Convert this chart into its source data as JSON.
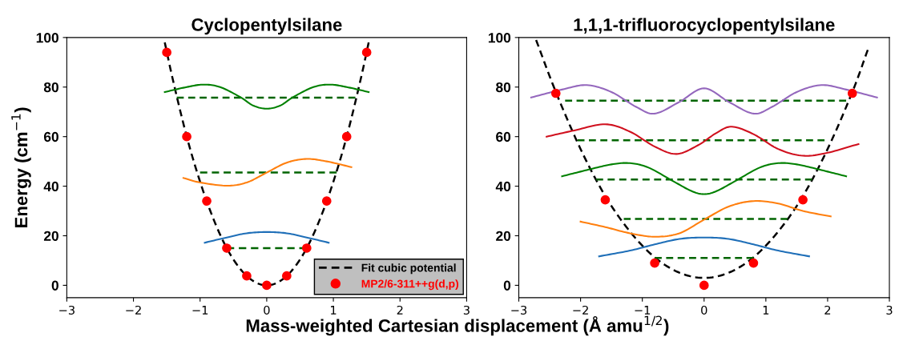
{
  "chart_data": [
    {
      "type": "line",
      "title": "Cyclopentylsilane",
      "xlabel": "Mass-weighted Cartesian displacement (Å amu$^{1/2}$)",
      "ylabel": "Energy (cm$^{−1}$)",
      "xlim": [
        -3,
        3
      ],
      "ylim": [
        -5,
        100
      ],
      "xticks": [
        {
          "value": -3,
          "label": "−3"
        },
        {
          "value": -2,
          "label": "−2"
        },
        {
          "value": -1,
          "label": "−1"
        },
        0,
        1,
        2,
        3
      ],
      "yticks": [
        0,
        20,
        40,
        60,
        80,
        100
      ],
      "grid": false,
      "legend": "bottom right",
      "series": [
        {
          "name": "Fit cubic potential",
          "color": "#000000",
          "line_style": "dashed",
          "x": [
            -1.53,
            -1.4,
            -1.2,
            -1.0,
            -0.8,
            -0.6,
            -0.4,
            -0.2,
            0,
            0.2,
            0.4,
            0.6,
            0.8,
            1.0,
            1.2,
            1.4,
            1.53
          ],
          "values": [
            98,
            82,
            60,
            41.8,
            26.8,
            15,
            6.7,
            1.7,
            0,
            1.7,
            6.7,
            15,
            26.8,
            41.8,
            60,
            82,
            98
          ]
        },
        {
          "type": "scatter",
          "name": "MP2/6-311++g(d,p)",
          "color": "#ff0000",
          "marker": "circle",
          "x": [
            -1.5,
            -1.2,
            -0.9,
            -0.6,
            -0.3,
            0,
            0.3,
            0.6,
            0.9,
            1.2,
            1.5
          ],
          "values": [
            94,
            60,
            34,
            15,
            3.8,
            0,
            3.8,
            15,
            34,
            60,
            94
          ]
        },
        {
          "type": "line",
          "color": "#006400",
          "line_style": "dashed",
          "x": [
            -0.6,
            0.6
          ],
          "values": [
            15,
            15
          ]
        },
        {
          "type": "line",
          "color": "#006400",
          "line_style": "dashed",
          "x": [
            -1.0,
            1.05
          ],
          "values": [
            45.5,
            45.5
          ]
        },
        {
          "type": "line",
          "color": "#006400",
          "line_style": "dashed",
          "x": [
            -1.35,
            1.33
          ],
          "values": [
            75.7,
            75.7
          ]
        },
        {
          "type": "line",
          "color": "#1f6fb8",
          "line_style": "solid",
          "x": [
            -0.93,
            -0.6,
            -0.3,
            0,
            0.3,
            0.6,
            0.93
          ],
          "values": [
            17.2,
            19.3,
            21,
            21.5,
            21,
            19.3,
            17.2
          ]
        },
        {
          "type": "line",
          "color": "#ff7f0e",
          "line_style": "solid",
          "x": [
            -1.25,
            -1.0,
            -0.6,
            -0.3,
            0,
            0.3,
            0.6,
            0.9,
            1.27
          ],
          "values": [
            43.3,
            41.5,
            40.2,
            41.5,
            45.5,
            49.5,
            51,
            50,
            47.7
          ]
        },
        {
          "type": "line",
          "color": "#008000",
          "line_style": "solid",
          "x": [
            -1.53,
            -1.2,
            -0.95,
            -0.7,
            -0.4,
            -0.2,
            0,
            0.2,
            0.4,
            0.7,
            0.95,
            1.2,
            1.53
          ],
          "values": [
            78,
            80,
            81,
            80,
            76,
            72.5,
            71.3,
            72.5,
            76,
            80,
            81,
            80,
            78
          ]
        }
      ]
    },
    {
      "type": "line",
      "title": "1,1,1-trifluorocyclopentylsilane",
      "xlim": [
        -3,
        3
      ],
      "ylim": [
        -5,
        100
      ],
      "xticks": [
        {
          "value": -3,
          "label": "−3"
        },
        {
          "value": -2,
          "label": "−2"
        },
        {
          "value": -1,
          "label": "−1"
        },
        0,
        1,
        2,
        3
      ],
      "yticks": [
        0,
        20,
        40,
        60,
        80,
        100
      ],
      "grid": false,
      "series": [
        {
          "type": "line",
          "color": "#000000",
          "line_style": "dashed",
          "x": [
            -2.72,
            -2.4,
            -2.0,
            -1.6,
            -1.2,
            -0.8,
            -0.4,
            0,
            0.4,
            0.8,
            1.2,
            1.6,
            2.0,
            2.4,
            2.65
          ],
          "values": [
            99,
            78,
            55,
            36,
            21.7,
            11.3,
            5.1,
            3,
            5.1,
            11.3,
            21.7,
            36,
            55,
            78,
            95
          ]
        },
        {
          "type": "scatter",
          "color": "#ff0000",
          "marker": "circle",
          "x": [
            -2.4,
            -1.6,
            -0.8,
            0,
            0.8,
            1.6,
            2.4
          ],
          "values": [
            77.5,
            34.5,
            9,
            0,
            9,
            34.5,
            77.5
          ]
        },
        {
          "type": "line",
          "color": "#006400",
          "line_style": "dashed",
          "x": [
            -0.8,
            0.8
          ],
          "values": [
            11,
            11
          ]
        },
        {
          "type": "line",
          "color": "#006400",
          "line_style": "dashed",
          "x": [
            -1.3,
            1.35
          ],
          "values": [
            26.8,
            26.8
          ]
        },
        {
          "type": "line",
          "color": "#006400",
          "line_style": "dashed",
          "x": [
            -1.75,
            1.75
          ],
          "values": [
            42.7,
            42.7
          ]
        },
        {
          "type": "line",
          "color": "#006400",
          "line_style": "dashed",
          "x": [
            -2.05,
            1.95
          ],
          "values": [
            58.5,
            58.5
          ]
        },
        {
          "type": "line",
          "color": "#006400",
          "line_style": "dashed",
          "x": [
            -2.25,
            2.3
          ],
          "values": [
            74.5,
            74.5
          ]
        },
        {
          "type": "line",
          "color": "#1f6fb8",
          "line_style": "solid",
          "x": [
            -1.7,
            -1.2,
            -0.8,
            -0.4,
            0,
            0.4,
            0.8,
            1.2,
            1.7
          ],
          "values": [
            11.7,
            14,
            16.5,
            18.7,
            19.3,
            18.7,
            16.5,
            14,
            11.7
          ]
        },
        {
          "type": "line",
          "color": "#ff7f0e",
          "line_style": "solid",
          "x": [
            -2.0,
            -1.6,
            -1.2,
            -0.8,
            -0.4,
            0,
            0.4,
            0.8,
            1.2,
            1.6,
            2.05
          ],
          "values": [
            25.7,
            23.5,
            21,
            19.6,
            21,
            26.5,
            31.8,
            34,
            33,
            30,
            27.8
          ]
        },
        {
          "type": "line",
          "color": "#008000",
          "line_style": "solid",
          "x": [
            -2.3,
            -1.9,
            -1.5,
            -1.2,
            -0.9,
            -0.5,
            -0.2,
            0,
            0.2,
            0.5,
            0.9,
            1.2,
            1.5,
            1.9,
            2.3
          ],
          "values": [
            44,
            46.5,
            48.8,
            49.3,
            47.5,
            42,
            38,
            36.8,
            38,
            42,
            47.5,
            49.3,
            48.8,
            46.5,
            44
          ]
        },
        {
          "type": "line",
          "color": "#d0101e",
          "line_style": "solid",
          "x": [
            -2.55,
            -2.1,
            -1.6,
            -1.2,
            -0.8,
            -0.45,
            -0.1,
            0.2,
            0.45,
            0.8,
            1.2,
            1.6,
            2.0,
            2.5
          ],
          "values": [
            60,
            62.5,
            65,
            62,
            56,
            53,
            56.5,
            61.5,
            64,
            61,
            55,
            52.3,
            53.5,
            57
          ]
        },
        {
          "type": "line",
          "color": "#9467bd",
          "line_style": "solid",
          "x": [
            -2.8,
            -2.3,
            -1.9,
            -1.5,
            -1.1,
            -0.8,
            -0.4,
            0,
            0.4,
            0.8,
            1.1,
            1.5,
            1.9,
            2.3,
            2.8
          ],
          "values": [
            75.8,
            79,
            80.8,
            78,
            72,
            69.3,
            74,
            79.5,
            74,
            69.3,
            72,
            78,
            80.8,
            79,
            75.8
          ]
        }
      ]
    }
  ]
}
